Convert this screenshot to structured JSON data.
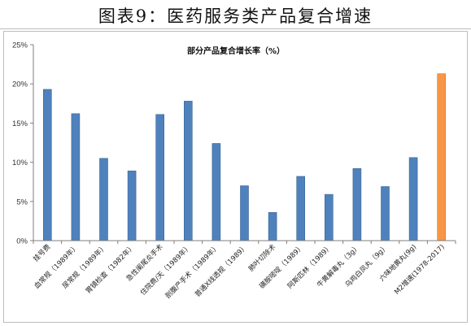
{
  "figure": {
    "title": "图表9：医药服务类产品复合增速"
  },
  "colors": {
    "blue": "#4F81BD",
    "blue_edge": "#3A6495",
    "orange": "#F79646",
    "orange_edge": "#D6762D",
    "axis": "#7f7f7f"
  },
  "chart_data": {
    "type": "bar",
    "title": "部分产品复合增长率（%）",
    "xlabel": "",
    "ylabel": "",
    "ylim": [
      0,
      25
    ],
    "ytick_values": [
      0,
      5,
      10,
      15,
      20,
      25
    ],
    "ytick_labels": [
      "0%",
      "5%",
      "10%",
      "15%",
      "20%",
      "25%"
    ],
    "grid": false,
    "categories": [
      "挂号费",
      "血常规（1989年）",
      "尿常规（1989年）",
      "胃镜检查（1982年）",
      "急性阑尾炎手术",
      "住院费/天（1989年）",
      "剖腹产手术（1989年）",
      "普通X线透视（1989）",
      "肺叶切除术",
      "磺胺嘧啶（1989）",
      "阿斯匹林（1989）",
      "牛黄解毒丸（3g）",
      "乌鸡白凤丸（9g）",
      "六味地黄丸(9g)",
      "M2增速(1978-2017)"
    ],
    "values": [
      19.3,
      16.2,
      10.5,
      8.9,
      16.1,
      17.8,
      12.4,
      7.0,
      3.6,
      8.2,
      5.9,
      9.2,
      6.9,
      10.6,
      21.3
    ],
    "highlight_index": 14
  }
}
